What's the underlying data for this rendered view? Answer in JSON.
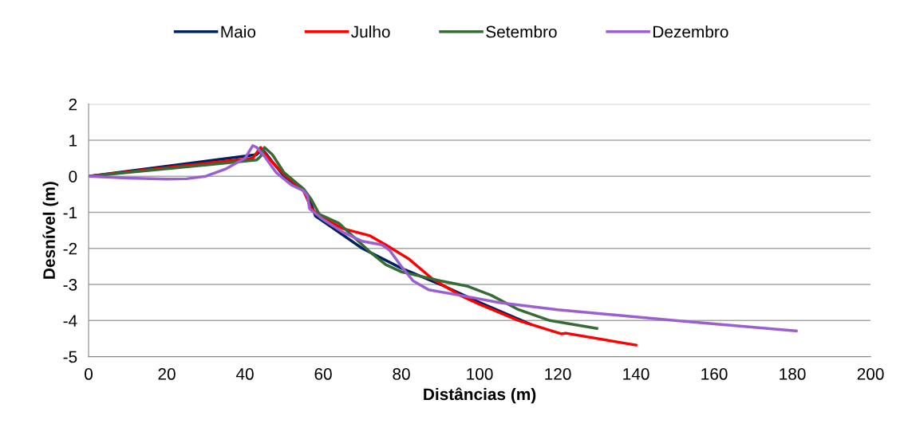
{
  "chart_data": {
    "type": "line",
    "xlabel": "Distâncias (m)",
    "ylabel": "Desnível (m)",
    "xlim": [
      0,
      200
    ],
    "xticks": [
      0,
      20,
      40,
      60,
      80,
      100,
      120,
      140,
      160,
      180,
      200
    ],
    "ylim": [
      -5,
      2
    ],
    "yticks": [
      -5,
      -4,
      -3,
      -2,
      -1,
      0,
      1,
      2
    ],
    "grid": "y",
    "legend": "top",
    "marker": "none",
    "line_style": "solid",
    "series": [
      {
        "name": "Maio",
        "color": "#002060",
        "x": [
          0,
          43,
          44.5,
          47,
          50,
          55,
          57,
          58,
          62,
          70,
          80,
          90,
          100,
          113
        ],
        "values": [
          0,
          0.6,
          0.75,
          0.4,
          0,
          -0.4,
          -0.8,
          -1.1,
          -1.4,
          -2.0,
          -2.55,
          -3.0,
          -3.5,
          -4.1
        ]
      },
      {
        "name": "Julho",
        "color": "#ff0000",
        "x": [
          0,
          42,
          44,
          46,
          50,
          55,
          57,
          59,
          65,
          72,
          76,
          82,
          88,
          95,
          100,
          110,
          121,
          122,
          140
        ],
        "values": [
          0,
          0.5,
          0.8,
          0.5,
          0.05,
          -0.4,
          -0.9,
          -1.1,
          -1.45,
          -1.65,
          -1.9,
          -2.3,
          -2.85,
          -3.3,
          -3.55,
          -4.0,
          -4.37,
          -4.35,
          -4.68
        ]
      },
      {
        "name": "Setembro",
        "color": "#376b35",
        "x": [
          0,
          43,
          44,
          45,
          47,
          50,
          55,
          57,
          59,
          64,
          68,
          72,
          76,
          80,
          90,
          97,
          103,
          110,
          118,
          130
        ],
        "values": [
          0,
          0.45,
          0.55,
          0.8,
          0.6,
          0.1,
          -0.35,
          -0.65,
          -1.05,
          -1.3,
          -1.7,
          -2.1,
          -2.45,
          -2.65,
          -2.9,
          -3.05,
          -3.3,
          -3.7,
          -4.0,
          -4.22
        ]
      },
      {
        "name": "Dezembro",
        "color": "#9b5fd0",
        "x": [
          0,
          10,
          20,
          25,
          30,
          35,
          40,
          42,
          43,
          45,
          48,
          52,
          55,
          56,
          56.5,
          60,
          65,
          70,
          75,
          77,
          80,
          83,
          87,
          95,
          105,
          120,
          150,
          181
        ],
        "values": [
          0,
          -0.05,
          -0.08,
          -0.07,
          0,
          0.2,
          0.5,
          0.85,
          0.8,
          0.55,
          0.1,
          -0.25,
          -0.4,
          -0.55,
          -0.9,
          -1.2,
          -1.55,
          -1.8,
          -1.9,
          -2.05,
          -2.5,
          -2.9,
          -3.15,
          -3.3,
          -3.5,
          -3.7,
          -4.0,
          -4.29
        ]
      }
    ]
  }
}
